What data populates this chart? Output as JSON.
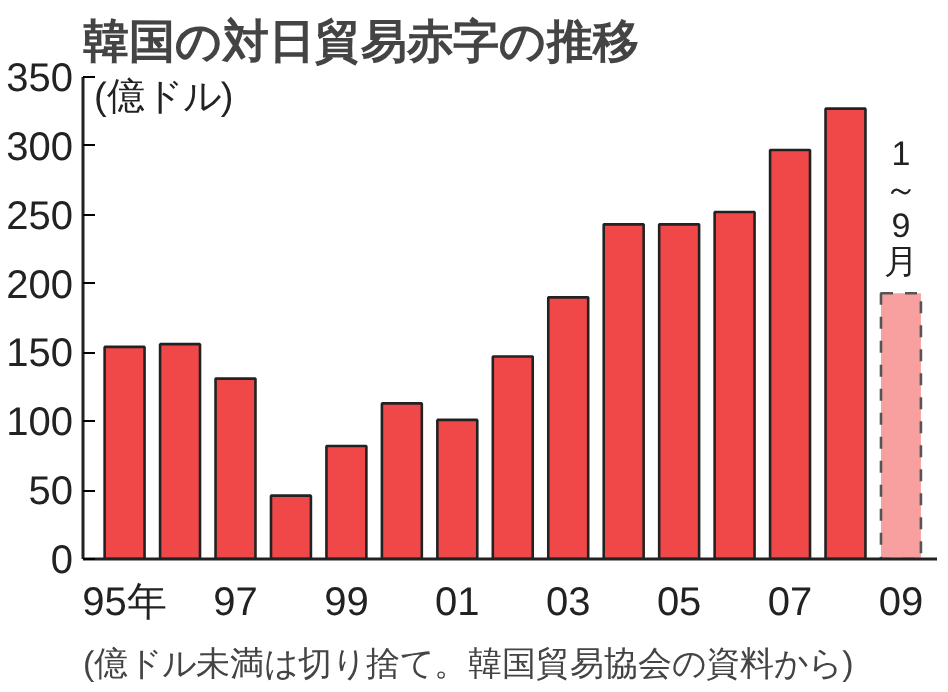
{
  "chart_data": {
    "type": "bar",
    "title": "韓国の対日貿易赤字の推移",
    "ylabel": "(億ドル)",
    "categories": [
      "95年",
      null,
      "97",
      null,
      "99",
      null,
      "01",
      null,
      "03",
      null,
      "05",
      null,
      "07",
      null,
      "09"
    ],
    "stacked": true,
    "series": [
      {
        "color": "#f04848",
        "values": [
          154,
          156,
          131,
          46,
          82,
          113,
          101,
          147,
          190,
          243,
          243,
          252,
          297,
          327,
          null
        ]
      },
      {
        "color": "#f8a0a0",
        "line_style": "dashed",
        "values": [
          null,
          null,
          null,
          null,
          null,
          null,
          null,
          null,
          null,
          null,
          null,
          null,
          null,
          null,
          193
        ]
      }
    ],
    "ylim": [
      0,
      350
    ],
    "yticks": [
      0,
      50,
      100,
      150,
      200,
      250,
      300,
      350
    ],
    "grid": false,
    "annotations": [
      {
        "text": "1～9月",
        "x": "09",
        "y": 193
      },
      "(億ドル未満は切り捨て。韓国貿易協会の資料から)"
    ]
  }
}
